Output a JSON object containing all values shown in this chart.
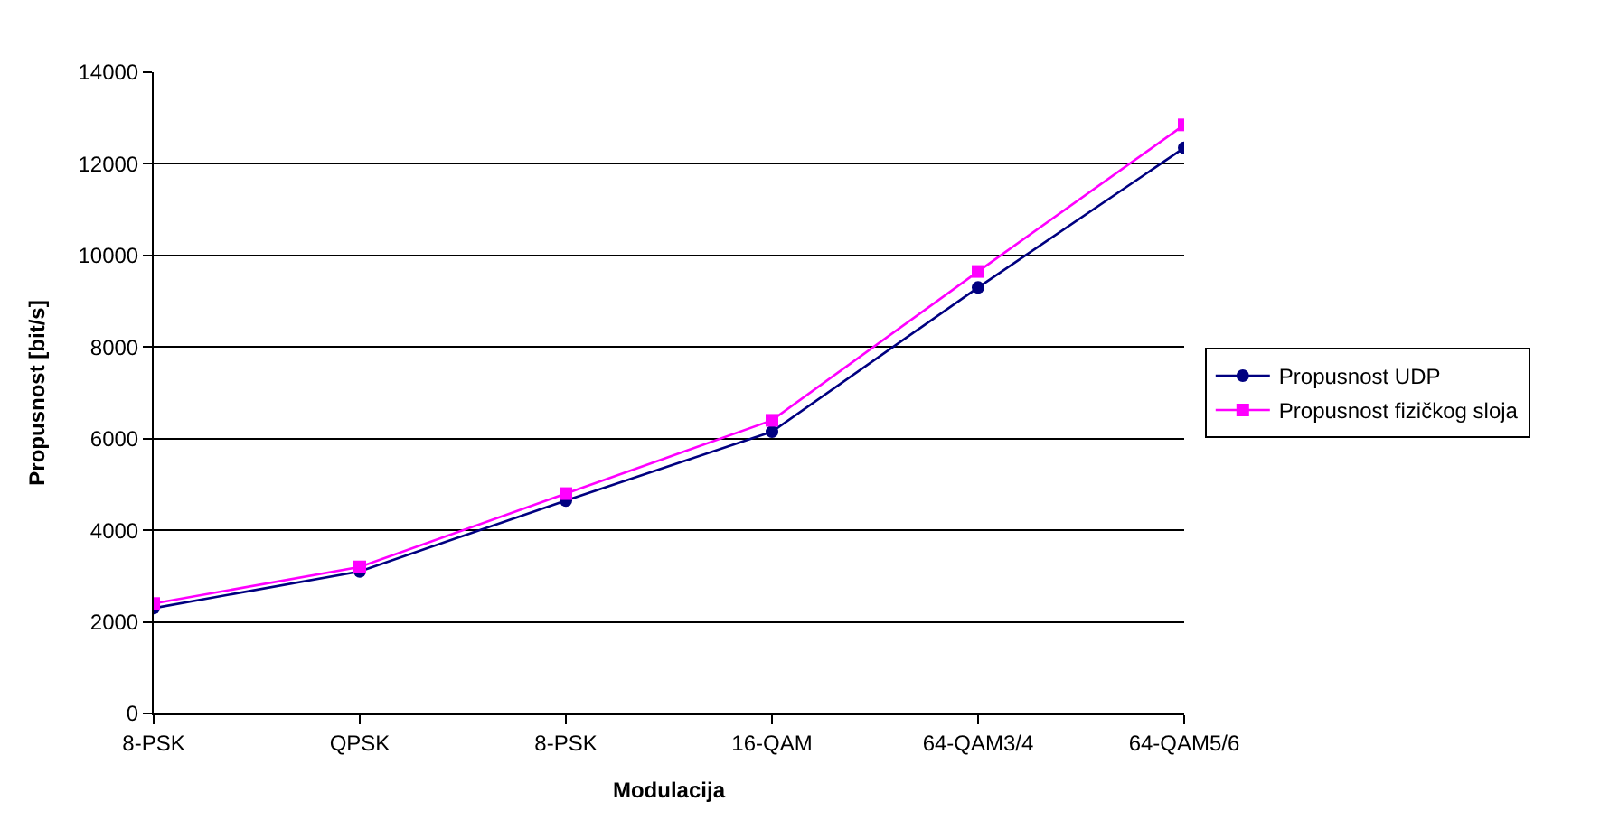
{
  "chart_data": {
    "type": "line",
    "xlabel": "Modulacija",
    "ylabel": "Propusnost [bit/s]",
    "categories": [
      "8-PSK",
      "QPSK",
      "8-PSK",
      "16-QAM",
      "64-QAM3/4",
      "64-QAM5/6"
    ],
    "series": [
      {
        "name": "Propusnost UDP",
        "color": "#000080",
        "marker": "circle",
        "values": [
          2300,
          3100,
          4650,
          6150,
          9300,
          12350
        ]
      },
      {
        "name": "Propusnost fizičkog sloja",
        "color": "#ff00ff",
        "marker": "square",
        "values": [
          2400,
          3200,
          4800,
          6400,
          9650,
          12850
        ]
      }
    ],
    "ylim": [
      0,
      14000
    ],
    "yticks": [
      0,
      2000,
      4000,
      6000,
      8000,
      10000,
      12000,
      14000
    ],
    "grid": "y",
    "legend": "right",
    "line_style": "solid"
  }
}
